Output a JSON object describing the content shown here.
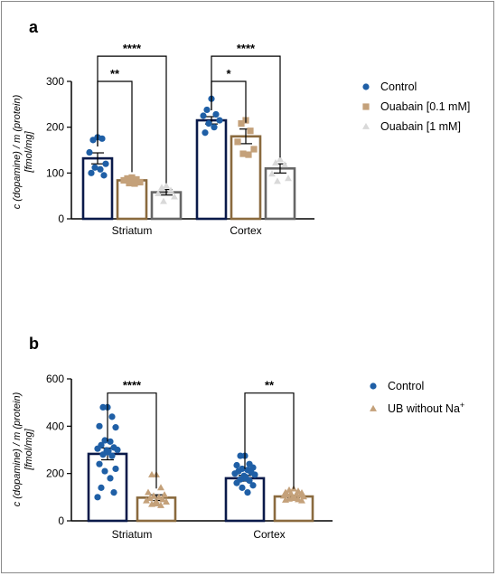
{
  "chart_data": [
    {
      "panel": "a",
      "type": "bar",
      "ylabel_lines": [
        "c (dopamine) / m (protein)",
        "[fmol/mg]"
      ],
      "ylim": [
        0,
        300
      ],
      "yticks": [
        0,
        100,
        200,
        300
      ],
      "categories": [
        "Striatum",
        "Cortex"
      ],
      "series": [
        {
          "name": "Control",
          "marker": "circle",
          "color": "#1f5fa6",
          "bar_edge": "#0a1a4a",
          "values": [
            132,
            215
          ],
          "sem": [
            12,
            8
          ],
          "points": [
            [
              178,
              172,
              175,
              145,
              120,
              112,
              108,
              100,
              95
            ],
            [
              262,
              238,
              228,
              225,
              215,
              208,
              200,
              188
            ]
          ]
        },
        {
          "name": "Ouabain [0.1 mM]",
          "marker": "square",
          "color": "#c4a17a",
          "bar_edge": "#8a6a3e",
          "values": [
            84,
            180
          ],
          "sem": [
            4,
            16
          ],
          "points": [
            [
              90,
              88,
              86,
              84,
              80,
              78,
              77
            ],
            [
              215,
              208,
              192,
              168,
              152,
              142,
              140
            ]
          ]
        },
        {
          "name": "Ouabain [1 mM]",
          "marker": "triangle",
          "color": "#d9d9d9",
          "bar_edge": "#666666",
          "values": [
            58,
            110
          ],
          "sem": [
            6,
            10
          ],
          "points": [
            [
              72,
              68,
              62,
              55,
              48,
              38
            ],
            [
              130,
              122,
              118,
              98,
              88,
              82
            ]
          ]
        }
      ],
      "significance": [
        {
          "category": "Striatum",
          "from": 0,
          "to": 1,
          "label": "**",
          "y": 300
        },
        {
          "category": "Striatum",
          "from": 0,
          "to": 2,
          "label": "****",
          "y": 355
        },
        {
          "category": "Cortex",
          "from": 0,
          "to": 1,
          "label": "*",
          "y": 300
        },
        {
          "category": "Cortex",
          "from": 0,
          "to": 2,
          "label": "****",
          "y": 355
        }
      ],
      "legend_position": "right"
    },
    {
      "panel": "b",
      "type": "bar",
      "ylabel_lines": [
        "c (dopamine) / m (protein)",
        "[fmol/mg]"
      ],
      "ylim": [
        0,
        600
      ],
      "yticks": [
        0,
        200,
        400,
        600
      ],
      "categories": [
        "Striatum",
        "Cortex"
      ],
      "series": [
        {
          "name": "Control",
          "marker": "circle",
          "color": "#1f5fa6",
          "bar_edge": "#0a1a4a",
          "values": [
            283,
            180
          ],
          "sem": [
            25,
            12
          ],
          "points": [
            [
              480,
              480,
              440,
              400,
              395,
              340,
              335,
              320,
              310,
              305,
              300,
              298,
              295,
              290,
              280,
              275,
              240,
              220,
              210,
              180,
              140,
              120,
              100
            ],
            [
              275,
              275,
              240,
              235,
              225,
              220,
              215,
              210,
              205,
              200,
              195,
              190,
              185,
              180,
              175,
              170,
              160,
              150,
              140,
              120
            ]
          ]
        },
        {
          "name": "UB without Na",
          "name_superscript": "+",
          "marker": "triangle",
          "color": "#c4a17a",
          "bar_edge": "#8a6a3e",
          "values": [
            98,
            103
          ],
          "sem": [
            12,
            5
          ],
          "points": [
            [
              195,
              195,
              140,
              120,
              110,
              105,
              100,
              95,
              90,
              85,
              80,
              78,
              75,
              72,
              70,
              65
            ],
            [
              135,
              130,
              125,
              120,
              118,
              115,
              112,
              110,
              108,
              105,
              102,
              100,
              98,
              95,
              92,
              90,
              88,
              85
            ]
          ]
        }
      ],
      "significance": [
        {
          "category": "Striatum",
          "from": 0,
          "to": 1,
          "label": "****",
          "y": 540
        },
        {
          "category": "Cortex",
          "from": 0,
          "to": 1,
          "label": "**",
          "y": 540
        }
      ],
      "legend_position": "right"
    }
  ]
}
